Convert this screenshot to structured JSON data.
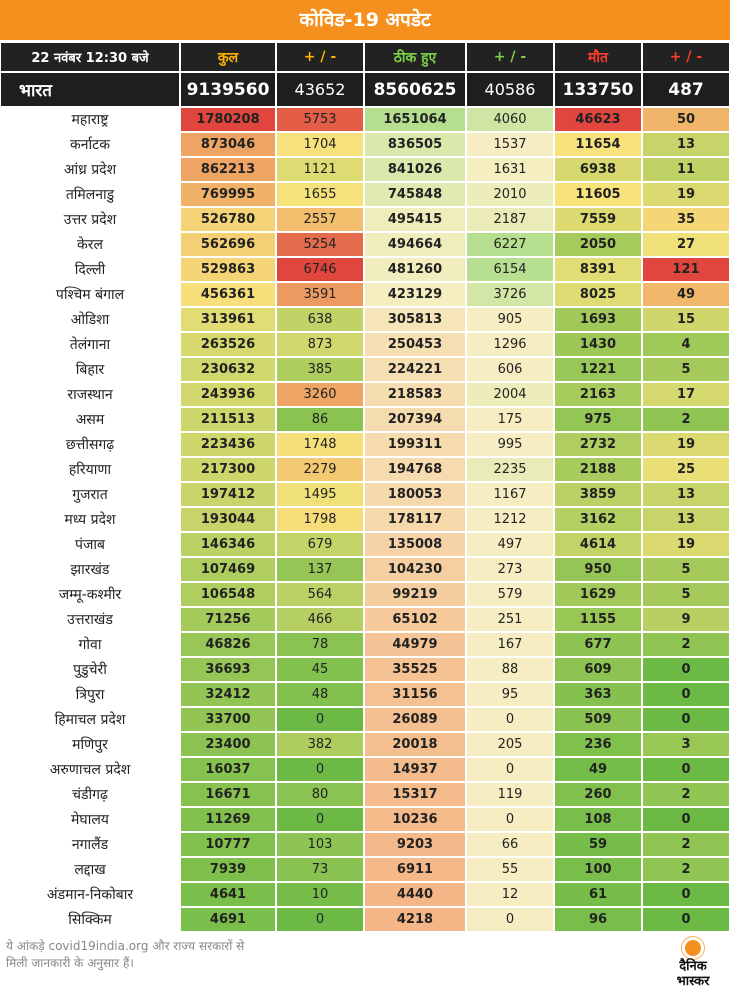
{
  "title": "कोविड-19 अपडेट",
  "header": {
    "datetime": "22 नवंबर  12:30 बजे",
    "total": "कुल",
    "delta": "+ / -",
    "recovered": "ठीक हुए",
    "delta2": "+ / -",
    "deaths": "मौत",
    "delta3": "+ / -"
  },
  "chart_data": {
    "type": "table",
    "columns": [
      "कुल",
      "+ / -",
      "ठीक हुए",
      "+ / -",
      "मौत",
      "+ / -"
    ],
    "national": {
      "name": "भारत",
      "values": [
        9139560,
        43652,
        8560625,
        40586,
        133750,
        487
      ]
    },
    "rows": [
      {
        "name": "महाराष्ट्र",
        "values": [
          1780208,
          5753,
          1651064,
          4060,
          46623,
          50
        ]
      },
      {
        "name": "कर्नाटक",
        "values": [
          873046,
          1704,
          836505,
          1537,
          11654,
          13
        ]
      },
      {
        "name": "आंध्र प्रदेश",
        "values": [
          862213,
          1121,
          841026,
          1631,
          6938,
          11
        ]
      },
      {
        "name": "तमिलनाडु",
        "values": [
          769995,
          1655,
          745848,
          2010,
          11605,
          19
        ]
      },
      {
        "name": "उत्तर प्रदेश",
        "values": [
          526780,
          2557,
          495415,
          2187,
          7559,
          35
        ]
      },
      {
        "name": "केरल",
        "values": [
          562696,
          5254,
          494664,
          6227,
          2050,
          27
        ]
      },
      {
        "name": "दिल्ली",
        "values": [
          529863,
          6746,
          481260,
          6154,
          8391,
          121
        ]
      },
      {
        "name": "पश्चिम बंगाल",
        "values": [
          456361,
          3591,
          423129,
          3726,
          8025,
          49
        ]
      },
      {
        "name": "ओडिशा",
        "values": [
          313961,
          638,
          305813,
          905,
          1693,
          15
        ]
      },
      {
        "name": "तेलंगाना",
        "values": [
          263526,
          873,
          250453,
          1296,
          1430,
          4
        ]
      },
      {
        "name": "बिहार",
        "values": [
          230632,
          385,
          224221,
          606,
          1221,
          5
        ]
      },
      {
        "name": "राजस्थान",
        "values": [
          243936,
          3260,
          218583,
          2004,
          2163,
          17
        ]
      },
      {
        "name": "असम",
        "values": [
          211513,
          86,
          207394,
          175,
          975,
          2
        ]
      },
      {
        "name": "छत्तीसगढ़",
        "values": [
          223436,
          1748,
          199311,
          995,
          2732,
          19
        ]
      },
      {
        "name": "हरियाणा",
        "values": [
          217300,
          2279,
          194768,
          2235,
          2188,
          25
        ]
      },
      {
        "name": "गुजरात",
        "values": [
          197412,
          1495,
          180053,
          1167,
          3859,
          13
        ]
      },
      {
        "name": "मध्य प्रदेश",
        "values": [
          193044,
          1798,
          178117,
          1212,
          3162,
          13
        ]
      },
      {
        "name": "पंजाब",
        "values": [
          146346,
          679,
          135008,
          497,
          4614,
          19
        ]
      },
      {
        "name": "झारखंड",
        "values": [
          107469,
          137,
          104230,
          273,
          950,
          5
        ]
      },
      {
        "name": "जम्मू-कश्मीर",
        "values": [
          106548,
          564,
          99219,
          579,
          1629,
          5
        ]
      },
      {
        "name": "उत्तराखंड",
        "values": [
          71256,
          466,
          65102,
          251,
          1155,
          9
        ]
      },
      {
        "name": "गोवा",
        "values": [
          46826,
          78,
          44979,
          167,
          677,
          2
        ]
      },
      {
        "name": "पुडुचेरी",
        "values": [
          36693,
          45,
          35525,
          88,
          609,
          0
        ]
      },
      {
        "name": "त्रिपुरा",
        "values": [
          32412,
          48,
          31156,
          95,
          363,
          0
        ]
      },
      {
        "name": "हिमाचल प्रदेश",
        "values": [
          33700,
          0,
          26089,
          0,
          509,
          0
        ]
      },
      {
        "name": "मणिपुर",
        "values": [
          23400,
          382,
          20018,
          205,
          236,
          3
        ]
      },
      {
        "name": "अरुणाचल प्रदेश",
        "values": [
          16037,
          0,
          14937,
          0,
          49,
          0
        ]
      },
      {
        "name": "चंडीगढ़",
        "values": [
          16671,
          80,
          15317,
          119,
          260,
          2
        ]
      },
      {
        "name": "मेघालय",
        "values": [
          11269,
          0,
          10236,
          0,
          108,
          0
        ]
      },
      {
        "name": "नगालैंड",
        "values": [
          10777,
          103,
          9203,
          66,
          59,
          2
        ]
      },
      {
        "name": "लद्दाख",
        "values": [
          7939,
          73,
          6911,
          55,
          100,
          2
        ]
      },
      {
        "name": "अंडमान-निकोबार",
        "values": [
          4641,
          10,
          4440,
          12,
          61,
          0
        ]
      },
      {
        "name": "सिक्किम",
        "values": [
          4691,
          0,
          4218,
          0,
          96,
          0
        ]
      }
    ]
  },
  "colors": {
    "bar": "#f5901e",
    "low": "#6cba45",
    "mid": "#f7e27c",
    "high": "#e0463e",
    "recovered_low": "#f4b080",
    "recovered_mid": "#f6eec2",
    "recovered_high": "#b5df8f"
  },
  "footer": {
    "line1": "ये आंकड़े covid19india.org और राज्य सरकारों से",
    "line2": "मिली जानकारी के अनुसार हैं।",
    "logo_line1": "दैनिक",
    "logo_line2": "भास्कर"
  }
}
